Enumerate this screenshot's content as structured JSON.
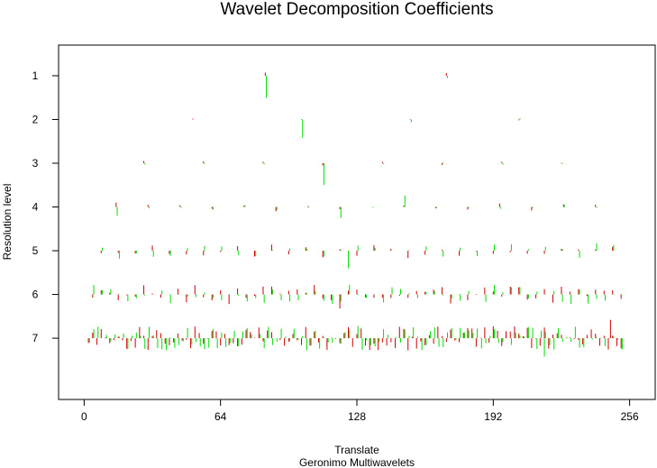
{
  "chart_data": {
    "type": "scatter",
    "title": "Wavelet Decomposition Coefficients",
    "xlabel": "Translate",
    "subtitle": "Geronimo Multiwavelets",
    "ylabel": "Resolution level",
    "xlim": [
      -12,
      268
    ],
    "ylim": [
      8.4,
      0.3
    ],
    "x_ticks": [
      0,
      64,
      128,
      192,
      256
    ],
    "x_tick_labels": [
      "0",
      "64",
      "128",
      "192",
      "256"
    ],
    "y_ticks": [
      1,
      2,
      3,
      4,
      5,
      6,
      7
    ],
    "y_tick_labels": [
      "1",
      "2",
      "3",
      "4",
      "5",
      "6",
      "7"
    ],
    "grid": false,
    "legend": "none",
    "series_colors": [
      "#cc0000",
      "#00dd00"
    ],
    "levels": [
      {
        "level": 1,
        "spacing": 85,
        "start": 85,
        "count": 2,
        "values_a": [
          -0.07,
          -0.06
        ],
        "values_b": [
          0.5,
          0.05
        ]
      },
      {
        "level": 2,
        "spacing": 51,
        "start": 51,
        "count": 4,
        "values_a": [
          -0.02,
          0.01,
          -0.01,
          0.02
        ],
        "values_b": [
          0.0,
          0.42,
          0.06,
          -0.03
        ]
      },
      {
        "level": 3,
        "spacing": 28,
        "start": 28,
        "count": 8,
        "values_a": [
          -0.05,
          -0.04,
          -0.03,
          0.05,
          -0.03,
          0.04,
          -0.03,
          -0.01
        ],
        "values_b": [
          0.03,
          0.02,
          0.02,
          0.5,
          0.02,
          -0.02,
          0.03,
          0.02
        ],
        "values_a_note": "index 3 is the long spike at ~x=114",
        "values_b_note": ""
      },
      {
        "level": 4,
        "spacing": 15,
        "start": 15,
        "count": 16,
        "values_a": [
          -0.1,
          -0.05,
          -0.04,
          0.04,
          -0.03,
          0.1,
          -0.02,
          0.05,
          0.0,
          -0.03,
          0.03,
          0.06,
          -0.08,
          0.08,
          -0.06,
          -0.05
        ],
        "values_b": [
          0.2,
          0.03,
          0.02,
          0.06,
          -0.04,
          0.06,
          0.02,
          0.25,
          0.02,
          -0.26,
          0.02,
          0.02,
          0.04,
          0.02,
          -0.04,
          0.02
        ]
      }
    ],
    "note_dense": "levels 5-7: two coefficient series per translate, drawn as short vertical segments around each resolution level"
  }
}
